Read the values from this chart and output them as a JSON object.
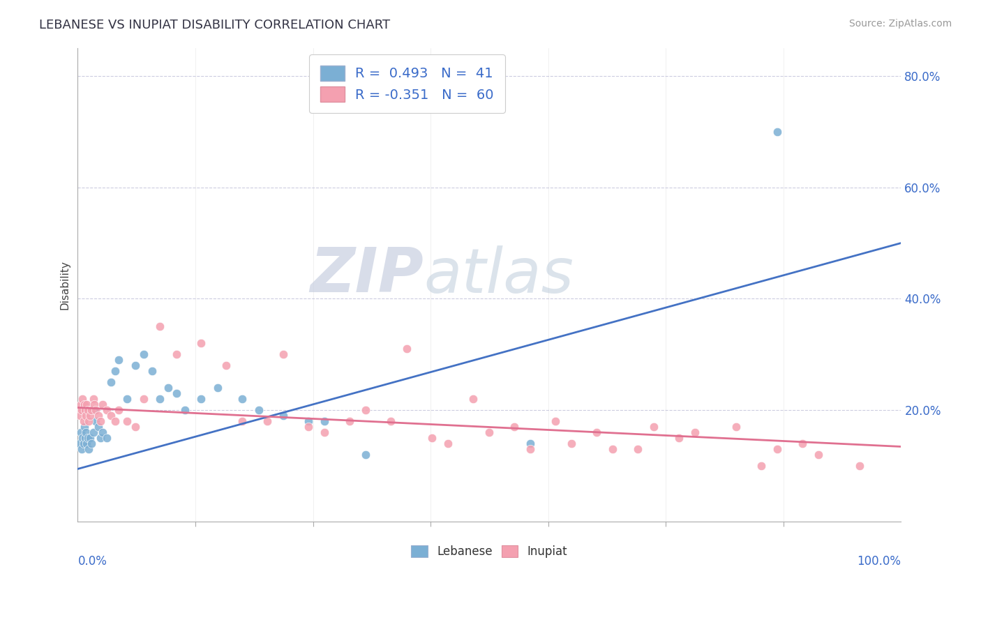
{
  "title": "LEBANESE VS INUPIAT DISABILITY CORRELATION CHART",
  "source": "Source: ZipAtlas.com",
  "ylabel": "Disability",
  "xlim": [
    0,
    100
  ],
  "ylim": [
    0,
    85
  ],
  "legend_label1": "R =  0.493   N =  41",
  "legend_label2": "R = -0.351   N =  60",
  "color_lebanese": "#7bafd4",
  "color_inupiat": "#f4a0b0",
  "line_color_lebanese": "#4472c4",
  "line_color_inupiat": "#e07090",
  "watermark_zip": "ZIP",
  "watermark_atlas": "atlas",
  "lebanese_x": [
    0.2,
    0.4,
    0.5,
    0.6,
    0.7,
    0.8,
    0.9,
    1.0,
    1.1,
    1.2,
    1.3,
    1.5,
    1.7,
    1.9,
    2.0,
    2.2,
    2.5,
    2.8,
    3.0,
    3.5,
    4.0,
    4.5,
    5.0,
    6.0,
    7.0,
    8.0,
    9.0,
    10.0,
    11.0,
    12.0,
    13.0,
    15.0,
    17.0,
    20.0,
    22.0,
    25.0,
    28.0,
    30.0,
    35.0,
    55.0,
    85.0
  ],
  "lebanese_y": [
    14,
    16,
    13,
    15,
    14,
    17,
    15,
    16,
    14,
    15,
    13,
    15,
    14,
    16,
    20,
    18,
    17,
    15,
    16,
    15,
    25,
    27,
    29,
    22,
    28,
    30,
    27,
    22,
    24,
    23,
    20,
    22,
    24,
    22,
    20,
    19,
    18,
    18,
    12,
    14,
    70
  ],
  "inupiat_x": [
    0.2,
    0.3,
    0.4,
    0.5,
    0.6,
    0.7,
    0.8,
    0.9,
    1.0,
    1.1,
    1.2,
    1.3,
    1.5,
    1.7,
    1.9,
    2.0,
    2.2,
    2.5,
    2.8,
    3.0,
    3.5,
    4.0,
    4.5,
    5.0,
    6.0,
    7.0,
    8.0,
    10.0,
    12.0,
    15.0,
    18.0,
    20.0,
    23.0,
    25.0,
    28.0,
    30.0,
    33.0,
    35.0,
    38.0,
    40.0,
    43.0,
    45.0,
    48.0,
    50.0,
    53.0,
    55.0,
    58.0,
    60.0,
    63.0,
    65.0,
    68.0,
    70.0,
    73.0,
    75.0,
    80.0,
    83.0,
    85.0,
    88.0,
    90.0,
    95.0
  ],
  "inupiat_y": [
    20,
    19,
    21,
    20,
    22,
    18,
    21,
    20,
    19,
    21,
    20,
    18,
    19,
    20,
    22,
    21,
    20,
    19,
    18,
    21,
    20,
    19,
    18,
    20,
    18,
    17,
    22,
    35,
    30,
    32,
    28,
    18,
    18,
    30,
    17,
    16,
    18,
    20,
    18,
    31,
    15,
    14,
    22,
    16,
    17,
    13,
    18,
    14,
    16,
    13,
    13,
    17,
    15,
    16,
    17,
    10,
    13,
    14,
    12,
    10
  ],
  "leb_line_x0": 0,
  "leb_line_y0": 9.5,
  "leb_line_x1": 100,
  "leb_line_y1": 50,
  "inp_line_x0": 0,
  "inp_line_y0": 20.5,
  "inp_line_x1": 100,
  "inp_line_y1": 13.5
}
